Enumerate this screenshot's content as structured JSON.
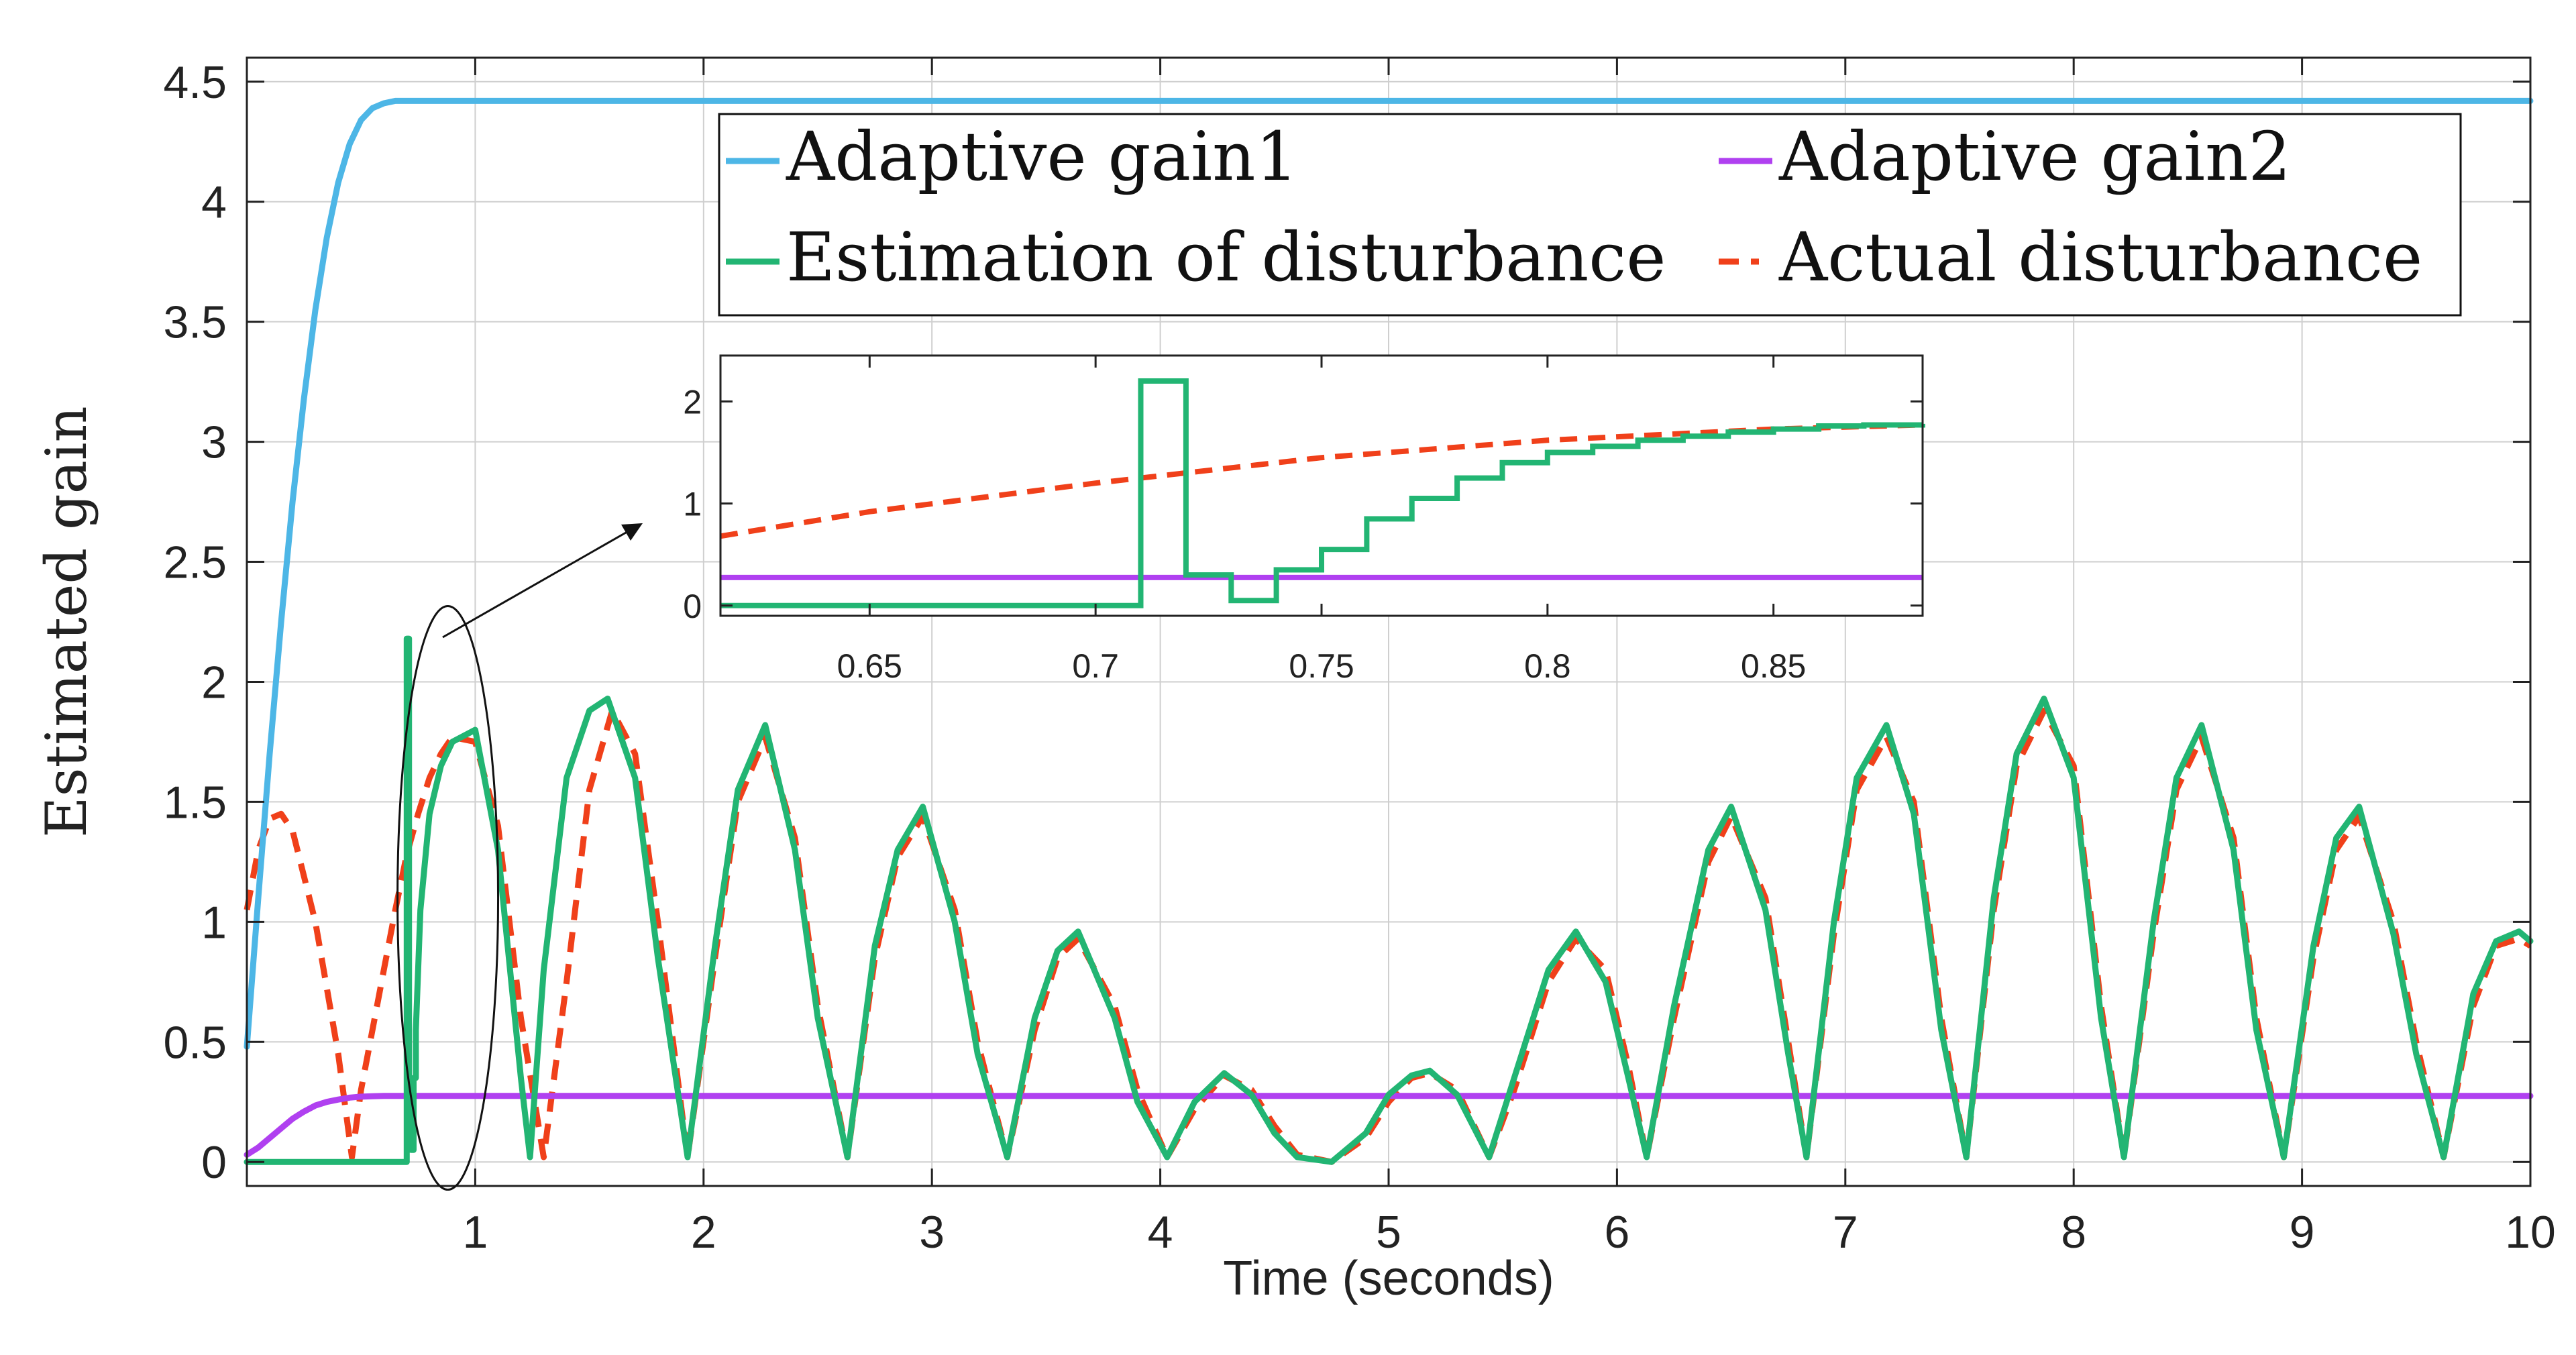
{
  "chart_data": [
    {
      "type": "line",
      "title": "",
      "xlabel": "Time (seconds)",
      "ylabel": "Estimated gain",
      "xlim": [
        0,
        10
      ],
      "ylim": [
        -0.1,
        4.6
      ],
      "xticks": [
        1,
        2,
        3,
        4,
        5,
        6,
        7,
        8,
        9,
        10
      ],
      "xtick_labels": [
        "1",
        "2",
        "3",
        "4",
        "5",
        "6",
        "7",
        "8",
        "9",
        "10"
      ],
      "yticks": [
        0,
        0.5,
        1,
        1.5,
        2,
        2.5,
        3,
        3.5,
        4,
        4.5
      ],
      "ytick_labels": [
        "0",
        "0.5",
        "1",
        "1.5",
        "2",
        "2.5",
        "3",
        "3.5",
        "4",
        "4.5"
      ],
      "grid": true,
      "legend_placement": "top-right, two columns",
      "series": [
        {
          "name": "Adaptive gain1",
          "color": "#4db6e6",
          "style": "solid",
          "x": [
            0,
            0.05,
            0.1,
            0.15,
            0.2,
            0.25,
            0.3,
            0.35,
            0.4,
            0.45,
            0.5,
            0.55,
            0.6,
            0.65,
            0.7,
            10
          ],
          "y": [
            0.48,
            1.1,
            1.7,
            2.25,
            2.75,
            3.18,
            3.55,
            3.85,
            4.08,
            4.24,
            4.34,
            4.39,
            4.41,
            4.42,
            4.42,
            4.42
          ]
        },
        {
          "name": "Adaptive gain2",
          "color": "#b040f0",
          "style": "solid",
          "x": [
            0,
            0.05,
            0.1,
            0.15,
            0.2,
            0.25,
            0.3,
            0.35,
            0.4,
            0.45,
            0.5,
            0.55,
            0.6,
            10
          ],
          "y": [
            0.03,
            0.06,
            0.1,
            0.14,
            0.18,
            0.21,
            0.235,
            0.25,
            0.26,
            0.268,
            0.272,
            0.274,
            0.275,
            0.275
          ]
        },
        {
          "name": "Estimation of disturbance",
          "color": "#22b573",
          "style": "solid",
          "x": [
            0,
            0.7,
            0.7,
            0.71,
            0.71,
            0.72,
            0.72,
            0.73,
            0.73,
            0.74,
            0.74,
            0.76,
            0.8,
            0.85,
            0.9,
            1.0,
            1.1,
            1.2,
            1.24,
            1.3,
            1.4,
            1.5,
            1.58,
            1.7,
            1.8,
            1.93,
            2.05,
            2.15,
            2.27,
            2.4,
            2.5,
            2.63,
            2.75,
            2.85,
            2.96,
            3.1,
            3.2,
            3.33,
            3.45,
            3.55,
            3.64,
            3.8,
            3.9,
            4.03,
            4.15,
            4.28,
            4.4,
            4.5,
            4.6,
            4.75,
            4.9,
            5.0,
            5.1,
            5.18,
            5.3,
            5.44,
            5.55,
            5.7,
            5.82,
            5.95,
            6.05,
            6.13,
            6.25,
            6.4,
            6.5,
            6.65,
            6.75,
            6.83,
            6.95,
            7.05,
            7.18,
            7.3,
            7.42,
            7.53,
            7.65,
            7.75,
            7.87,
            8.0,
            8.12,
            8.22,
            8.35,
            8.45,
            8.56,
            8.7,
            8.8,
            8.92,
            9.05,
            9.15,
            9.25,
            9.4,
            9.5,
            9.62,
            9.75,
            9.85,
            9.95,
            10.0
          ],
          "y": [
            0,
            0,
            2.18,
            2.18,
            0.3,
            0.3,
            0.05,
            0.05,
            0.35,
            0.35,
            0.55,
            1.05,
            1.45,
            1.65,
            1.75,
            1.8,
            1.3,
            0.35,
            0.02,
            0.8,
            1.6,
            1.88,
            1.93,
            1.6,
            0.85,
            0.02,
            0.9,
            1.55,
            1.82,
            1.3,
            0.6,
            0.02,
            0.9,
            1.3,
            1.48,
            1.0,
            0.45,
            0.02,
            0.6,
            0.88,
            0.96,
            0.6,
            0.25,
            0.02,
            0.25,
            0.37,
            0.28,
            0.12,
            0.02,
            0.0,
            0.12,
            0.28,
            0.36,
            0.38,
            0.28,
            0.02,
            0.35,
            0.8,
            0.96,
            0.75,
            0.35,
            0.02,
            0.65,
            1.3,
            1.48,
            1.05,
            0.45,
            0.02,
            1.0,
            1.6,
            1.82,
            1.45,
            0.55,
            0.02,
            1.1,
            1.7,
            1.93,
            1.6,
            0.6,
            0.02,
            1.0,
            1.6,
            1.82,
            1.3,
            0.55,
            0.02,
            0.9,
            1.35,
            1.48,
            0.95,
            0.45,
            0.02,
            0.7,
            0.92,
            0.96,
            0.92
          ]
        },
        {
          "name": "Actual disturbance",
          "color": "#f0401a",
          "style": "dashed",
          "x": [
            0,
            0.05,
            0.1,
            0.15,
            0.2,
            0.3,
            0.4,
            0.46,
            0.5,
            0.55,
            0.6,
            0.65,
            0.7,
            0.75,
            0.8,
            0.85,
            0.9,
            1.0,
            1.1,
            1.2,
            1.3,
            1.4,
            1.5,
            1.6,
            1.7,
            1.8,
            1.93,
            2.05,
            2.15,
            2.27,
            2.4,
            2.5,
            2.63,
            2.75,
            2.85,
            2.96,
            3.1,
            3.2,
            3.33,
            3.45,
            3.55,
            3.64,
            3.8,
            3.9,
            4.03,
            4.15,
            4.28,
            4.4,
            4.5,
            4.6,
            4.75,
            4.9,
            5.0,
            5.1,
            5.18,
            5.3,
            5.44,
            5.55,
            5.7,
            5.82,
            5.95,
            6.05,
            6.13,
            6.25,
            6.4,
            6.5,
            6.65,
            6.75,
            6.83,
            6.95,
            7.05,
            7.18,
            7.3,
            7.42,
            7.53,
            7.65,
            7.75,
            7.87,
            8.0,
            8.12,
            8.22,
            8.35,
            8.45,
            8.56,
            8.7,
            8.8,
            8.92,
            9.05,
            9.15,
            9.25,
            9.4,
            9.5,
            9.62,
            9.75,
            9.85,
            9.95,
            10.0
          ],
          "y": [
            1.05,
            1.3,
            1.43,
            1.45,
            1.38,
            1.0,
            0.45,
            0.02,
            0.3,
            0.55,
            0.8,
            1.05,
            1.28,
            1.45,
            1.6,
            1.7,
            1.77,
            1.75,
            1.4,
            0.6,
            0.02,
            0.75,
            1.55,
            1.88,
            1.7,
            1.0,
            0.02,
            0.85,
            1.5,
            1.77,
            1.35,
            0.65,
            0.02,
            0.85,
            1.27,
            1.44,
            1.05,
            0.5,
            0.02,
            0.55,
            0.85,
            0.93,
            0.65,
            0.3,
            0.02,
            0.22,
            0.36,
            0.3,
            0.15,
            0.03,
            0.0,
            0.1,
            0.25,
            0.35,
            0.37,
            0.3,
            0.02,
            0.3,
            0.75,
            0.93,
            0.8,
            0.4,
            0.02,
            0.6,
            1.25,
            1.44,
            1.1,
            0.5,
            0.02,
            0.95,
            1.55,
            1.77,
            1.5,
            0.6,
            0.02,
            1.05,
            1.65,
            1.88,
            1.65,
            0.65,
            0.02,
            0.95,
            1.55,
            1.77,
            1.35,
            0.6,
            0.02,
            0.85,
            1.3,
            1.44,
            1.0,
            0.5,
            0.02,
            0.65,
            0.9,
            0.93,
            0.9
          ]
        }
      ]
    },
    {
      "type": "line",
      "title": "",
      "xlabel": "",
      "ylabel": "",
      "xlim": [
        0.617,
        0.883
      ],
      "ylim": [
        -0.1,
        2.45
      ],
      "xticks": [
        0.65,
        0.7,
        0.75,
        0.8,
        0.85
      ],
      "xtick_labels": [
        "0.65",
        "0.7",
        "0.75",
        "0.8",
        "0.85"
      ],
      "yticks": [
        0,
        1,
        2
      ],
      "ytick_labels": [
        "0",
        "1",
        "2"
      ],
      "grid": false,
      "series": [
        {
          "color": "#b040f0",
          "style": "solid",
          "x": [
            0.617,
            0.883
          ],
          "y": [
            0.275,
            0.275
          ]
        },
        {
          "color": "#22b573",
          "style": "step",
          "x": [
            0.617,
            0.7,
            0.71,
            0.72,
            0.73,
            0.74,
            0.75,
            0.76,
            0.77,
            0.78,
            0.79,
            0.8,
            0.81,
            0.82,
            0.83,
            0.84,
            0.85,
            0.86,
            0.87,
            0.883
          ],
          "y": [
            0.0,
            0.0,
            2.2,
            0.3,
            0.05,
            0.35,
            0.55,
            0.85,
            1.05,
            1.25,
            1.4,
            1.5,
            1.56,
            1.62,
            1.66,
            1.7,
            1.73,
            1.76,
            1.77,
            1.78
          ]
        },
        {
          "color": "#f0401a",
          "style": "dashed",
          "x": [
            0.617,
            0.65,
            0.7,
            0.75,
            0.8,
            0.85,
            0.883
          ],
          "y": [
            0.68,
            0.92,
            1.2,
            1.45,
            1.62,
            1.73,
            1.77
          ]
        }
      ]
    }
  ]
}
